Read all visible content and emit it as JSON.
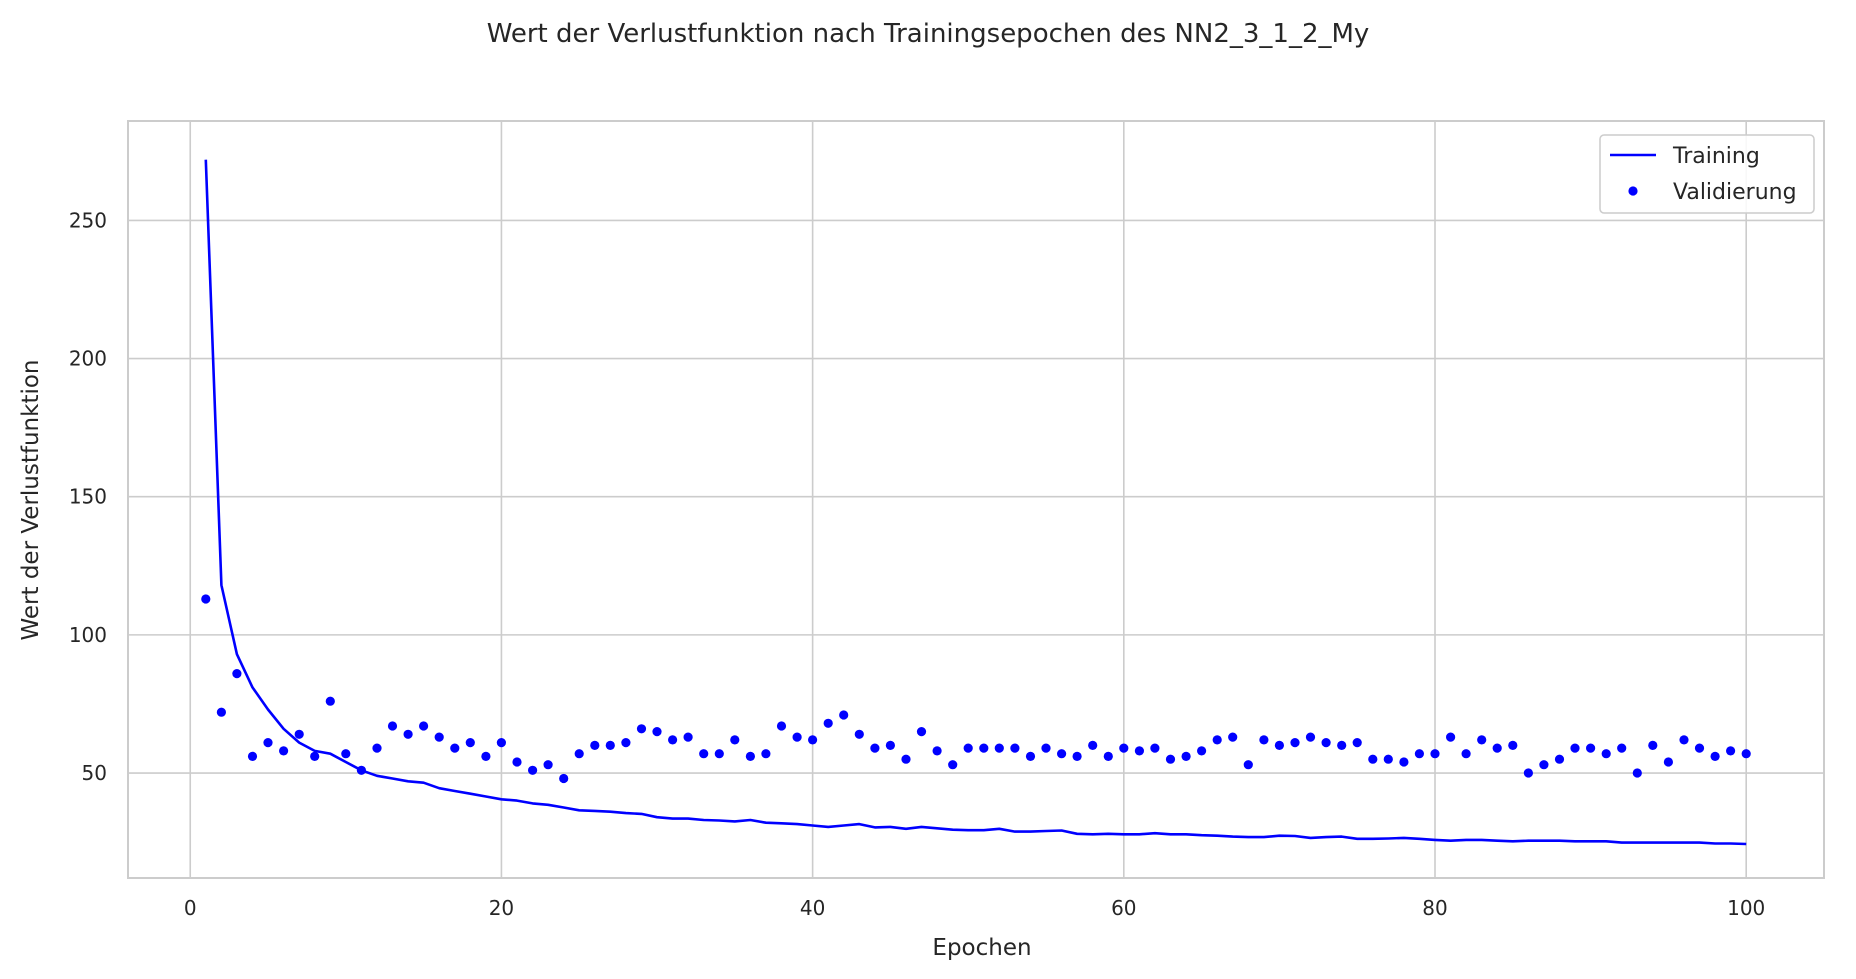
{
  "chart_data": {
    "type": "line",
    "title": "Wert der Verlustfunktion nach Trainingsepochen des NN2_3_1_2_My",
    "xlabel": "Epochen",
    "ylabel": "Wert der Verlustfunktion",
    "xlim": [
      -4,
      105
    ],
    "ylim": [
      12,
      286
    ],
    "xticks": [
      0,
      20,
      40,
      60,
      80,
      100
    ],
    "yticks": [
      50,
      100,
      150,
      200,
      250
    ],
    "grid": true,
    "legend_position": "top-right",
    "x": [
      1,
      2,
      3,
      4,
      5,
      6,
      7,
      8,
      9,
      10,
      11,
      12,
      13,
      14,
      15,
      16,
      17,
      18,
      19,
      20,
      21,
      22,
      23,
      24,
      25,
      26,
      27,
      28,
      29,
      30,
      31,
      32,
      33,
      34,
      35,
      36,
      37,
      38,
      39,
      40,
      41,
      42,
      43,
      44,
      45,
      46,
      47,
      48,
      49,
      50,
      51,
      52,
      53,
      54,
      55,
      56,
      57,
      58,
      59,
      60,
      61,
      62,
      63,
      64,
      65,
      66,
      67,
      68,
      69,
      70,
      71,
      72,
      73,
      74,
      75,
      76,
      77,
      78,
      79,
      80,
      81,
      82,
      83,
      84,
      85,
      86,
      87,
      88,
      89,
      90,
      91,
      92,
      93,
      94,
      95,
      96,
      97,
      98,
      99,
      100
    ],
    "series": [
      {
        "name": "Training",
        "style": "line",
        "color": "#0000ff",
        "values": [
          272,
          118,
          93,
          81,
          73,
          66,
          61,
          58,
          57,
          54,
          51,
          49,
          48,
          47,
          46.5,
          44.5,
          43.5,
          42.5,
          41.5,
          40.5,
          40,
          39,
          38.5,
          37.5,
          36.5,
          36.3,
          36,
          35.5,
          35.2,
          34,
          33.5,
          33.5,
          33,
          32.8,
          32.5,
          33,
          32,
          31.8,
          31.5,
          31,
          30.5,
          31,
          31.5,
          30.3,
          30.5,
          29.8,
          30.5,
          30,
          29.5,
          29.3,
          29.3,
          29.8,
          28.8,
          28.8,
          29,
          29.2,
          28,
          27.8,
          28,
          27.8,
          27.8,
          28.2,
          27.8,
          27.8,
          27.5,
          27.3,
          27,
          26.8,
          26.8,
          27.3,
          27.2,
          26.5,
          26.8,
          27,
          26.2,
          26.2,
          26.3,
          26.5,
          26.2,
          25.8,
          25.5,
          25.8,
          25.8,
          25.5,
          25.3,
          25.5,
          25.5,
          25.5,
          25.3,
          25.3,
          25.3,
          24.8,
          24.8,
          24.8,
          24.8,
          24.8,
          24.8,
          24.5,
          24.5,
          24.3
        ]
      },
      {
        "name": "Validierung",
        "style": "points",
        "color": "#0000ff",
        "values": [
          113,
          72,
          86,
          56,
          61,
          58,
          64,
          56,
          76,
          57,
          51,
          59,
          67,
          64,
          67,
          63,
          59,
          61,
          56,
          61,
          54,
          51,
          53,
          48,
          57,
          60,
          60,
          61,
          66,
          65,
          62,
          63,
          57,
          57,
          62,
          56,
          57,
          67,
          63,
          62,
          68,
          71,
          64,
          59,
          60,
          55,
          65,
          58,
          53,
          59,
          59,
          59,
          59,
          56,
          59,
          57,
          56,
          60,
          56,
          59,
          58,
          59,
          55,
          56,
          58,
          62,
          63,
          53,
          62,
          60,
          61,
          63,
          61,
          60,
          61,
          55,
          55,
          54,
          57,
          57,
          63,
          57,
          62,
          59,
          60,
          50,
          53,
          55,
          59,
          59,
          57,
          59,
          50,
          60,
          54,
          62,
          59,
          56,
          58,
          57
        ]
      }
    ]
  }
}
